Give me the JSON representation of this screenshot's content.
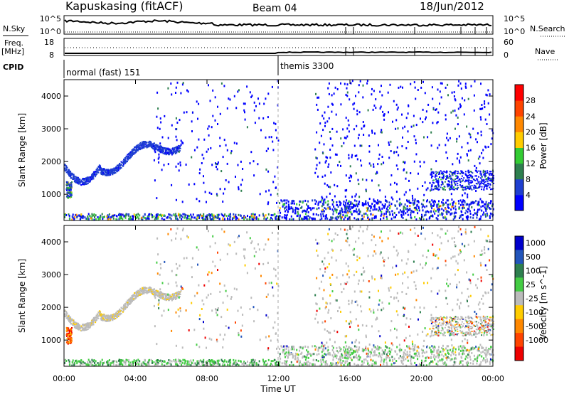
{
  "header": {
    "station": "Kapuskasing (fitACF)",
    "beam": "Beam 04",
    "date": "18/Jun/2012"
  },
  "top_panels": {
    "nsky": {
      "label": "N.Sky",
      "ticks_left": [
        "10^5",
        "10^0"
      ],
      "right_label": "N.Search",
      "ticks_right": [
        "10^5",
        "10^0"
      ]
    },
    "freq": {
      "label_line1": "Freq.",
      "label_line2": "[MHz]",
      "ticks_left": [
        "18",
        "8"
      ],
      "right_label": "Nave",
      "ticks_right": [
        "60",
        "0"
      ]
    },
    "cpid": {
      "label": "CPID",
      "modes": [
        {
          "name": "normal (fast) 151",
          "start_hour": 0
        },
        {
          "name": "themis 3300",
          "start_hour": 12
        }
      ]
    }
  },
  "chart_data": [
    {
      "type": "heatmap",
      "name": "power",
      "ylabel": "Slant Range [km]",
      "yticks": [
        1000,
        2000,
        3000,
        4000
      ],
      "ylim": [
        200,
        4500
      ],
      "xlim": [
        0,
        24
      ],
      "colorbar": {
        "label": "Power [dB]",
        "ticks": [
          "4",
          "8",
          "12",
          "16",
          "20",
          "24",
          "28"
        ],
        "colors": [
          "#0000ff",
          "#1f3fd0",
          "#2e7f4f",
          "#33cc33",
          "#ffcc00",
          "#ff8800",
          "#ff4400",
          "#ff0000"
        ]
      }
    },
    {
      "type": "heatmap",
      "name": "velocity",
      "ylabel": "Slant Range [km]",
      "yticks": [
        1000,
        2000,
        3000,
        4000
      ],
      "ylim": [
        200,
        4500
      ],
      "xlim": [
        0,
        24
      ],
      "xticks": [
        "00:00",
        "04:00",
        "08:00",
        "12:00",
        "16:00",
        "20:00",
        "00:00"
      ],
      "xlabel": "Time UT",
      "colorbar": {
        "label": "Velocity [m s^-1]",
        "ticks": [
          "1000",
          "500",
          "100",
          "25",
          "-25",
          "-100",
          "-500",
          "-1000"
        ],
        "colors": [
          "#0000cc",
          "#2255bb",
          "#2e7f4f",
          "#44cc44",
          "#bbbbbb",
          "#ffcc00",
          "#ff8800",
          "#ff4400",
          "#ee0000"
        ]
      }
    }
  ]
}
